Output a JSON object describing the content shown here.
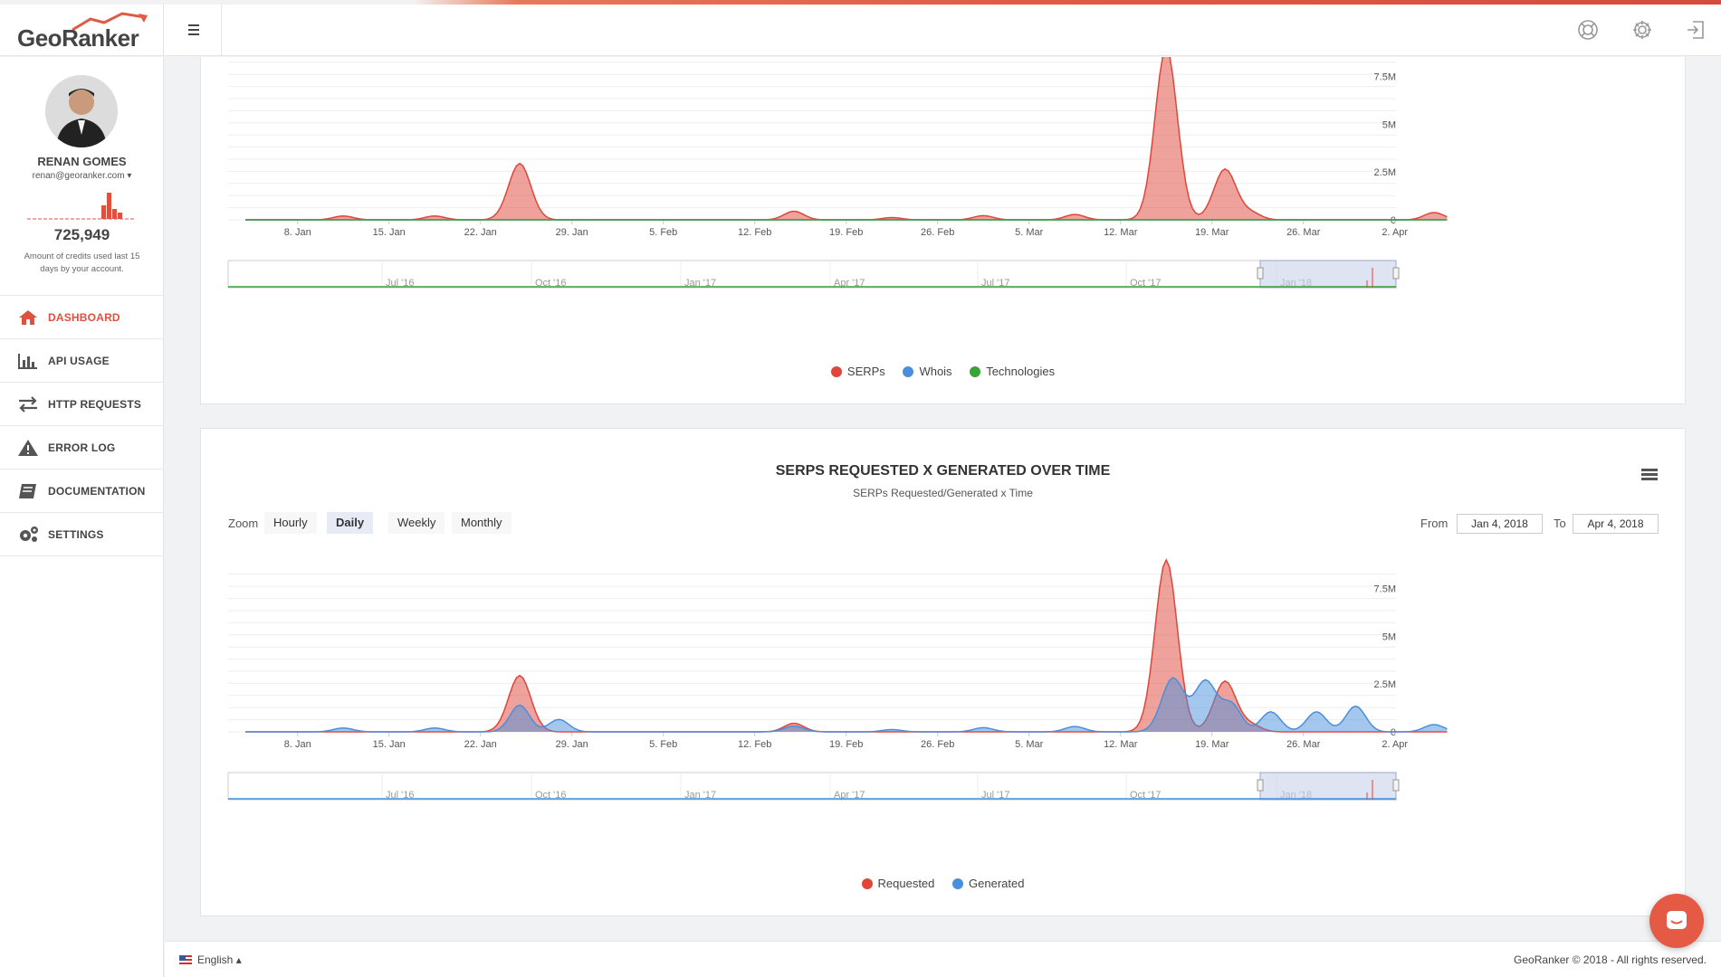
{
  "brand": {
    "logo_text": "GeoRanker"
  },
  "user": {
    "name": "RENAN GOMES",
    "email": "renan@georanker.com",
    "credits": "725,949",
    "credits_description": "Amount of credits used last 15 days by your account."
  },
  "sidebar": {
    "items": [
      {
        "label": "DASHBOARD",
        "icon": "home-icon",
        "active": true
      },
      {
        "label": "API USAGE",
        "icon": "bar-chart-icon",
        "active": false
      },
      {
        "label": "HTTP REQUESTS",
        "icon": "arrows-exchange-icon",
        "active": false
      },
      {
        "label": "ERROR LOG",
        "icon": "warning-icon",
        "active": false
      },
      {
        "label": "DOCUMENTATION",
        "icon": "book-icon",
        "active": false
      },
      {
        "label": "SETTINGS",
        "icon": "gears-icon",
        "active": false
      }
    ]
  },
  "header_icons": [
    "lifebuoy-icon",
    "gear-icon",
    "logout-icon"
  ],
  "colors": {
    "accent": "#e0503f",
    "red_series": "#e0453a",
    "blue_series": "#4a8fdc",
    "green_series": "#3aa336"
  },
  "chart_data": [
    {
      "type": "area",
      "x_ticks": [
        "8. Jan",
        "15. Jan",
        "22. Jan",
        "29. Jan",
        "5. Feb",
        "12. Feb",
        "19. Feb",
        "26. Feb",
        "5. Mar",
        "12. Mar",
        "19. Mar",
        "26. Mar",
        "2. Apr"
      ],
      "y_ticks": [
        "0",
        "2.5M",
        "5M",
        "7.5M"
      ],
      "ylim": [
        0,
        9000000
      ],
      "navigator_ticks": [
        "Jul '16",
        "Oct '16",
        "Jan '17",
        "Apr '17",
        "Jul '17",
        "Oct '17",
        "Jan '18"
      ],
      "x_start": "2018-01-04",
      "series": [
        {
          "name": "SERPs",
          "color": "#e0453a",
          "peaks": [
            [
              7.5,
              200000
            ],
            [
              14.5,
              200000
            ],
            [
              21.0,
              2950000
            ],
            [
              42.0,
              450000
            ],
            [
              49.5,
              120000
            ],
            [
              56.5,
              220000
            ],
            [
              63.5,
              280000
            ],
            [
              70.5,
              9000000
            ],
            [
              75.0,
              2650000
            ],
            [
              77.0,
              350000
            ],
            [
              91.0,
              380000
            ]
          ]
        },
        {
          "name": "Whois",
          "color": "#4a8fdc",
          "peaks": []
        },
        {
          "name": "Technologies",
          "color": "#3aa336",
          "peaks": []
        }
      ]
    },
    {
      "type": "area",
      "title": "SERPS REQUESTED X GENERATED OVER TIME",
      "subtitle": "SERPs Requested/Generated x Time",
      "x_ticks": [
        "8. Jan",
        "15. Jan",
        "22. Jan",
        "29. Jan",
        "5. Feb",
        "12. Feb",
        "19. Feb",
        "26. Feb",
        "5. Mar",
        "12. Mar",
        "19. Mar",
        "26. Mar",
        "2. Apr"
      ],
      "y_ticks": [
        "0",
        "2.5M",
        "5M",
        "7.5M"
      ],
      "ylim": [
        0,
        9000000
      ],
      "navigator_ticks": [
        "Jul '16",
        "Oct '16",
        "Jan '17",
        "Apr '17",
        "Jul '17",
        "Oct '17",
        "Jan '18"
      ],
      "x_start": "2018-01-04",
      "series": [
        {
          "name": "Requested",
          "color": "#e0453a",
          "peaks": [
            [
              21.0,
              2950000
            ],
            [
              42.0,
              450000
            ],
            [
              70.5,
              9000000
            ],
            [
              75.0,
              2650000
            ],
            [
              77.0,
              350000
            ]
          ]
        },
        {
          "name": "Generated",
          "color": "#4a8fdc",
          "peaks": [
            [
              7.5,
              200000
            ],
            [
              14.5,
              200000
            ],
            [
              21.0,
              1400000
            ],
            [
              24.0,
              650000
            ],
            [
              42.0,
              300000
            ],
            [
              49.5,
              120000
            ],
            [
              56.5,
              220000
            ],
            [
              63.5,
              280000
            ],
            [
              71.0,
              2800000
            ],
            [
              73.5,
              2650000
            ],
            [
              75.5,
              1400000
            ],
            [
              78.5,
              1050000
            ],
            [
              82.0,
              1050000
            ],
            [
              85.0,
              1350000
            ],
            [
              91.0,
              380000
            ]
          ]
        }
      ]
    }
  ],
  "charts": {
    "zoom_label": "Zoom",
    "zoom_options": [
      "Hourly",
      "Daily",
      "Weekly",
      "Monthly"
    ],
    "zoom_selected": "Daily",
    "from_label": "From",
    "from_value": "Jan 4, 2018",
    "to_label": "To",
    "to_value": "Apr 4, 2018"
  },
  "footer": {
    "language": "English",
    "copyright": "GeoRanker © 2018 - All rights reserved."
  }
}
